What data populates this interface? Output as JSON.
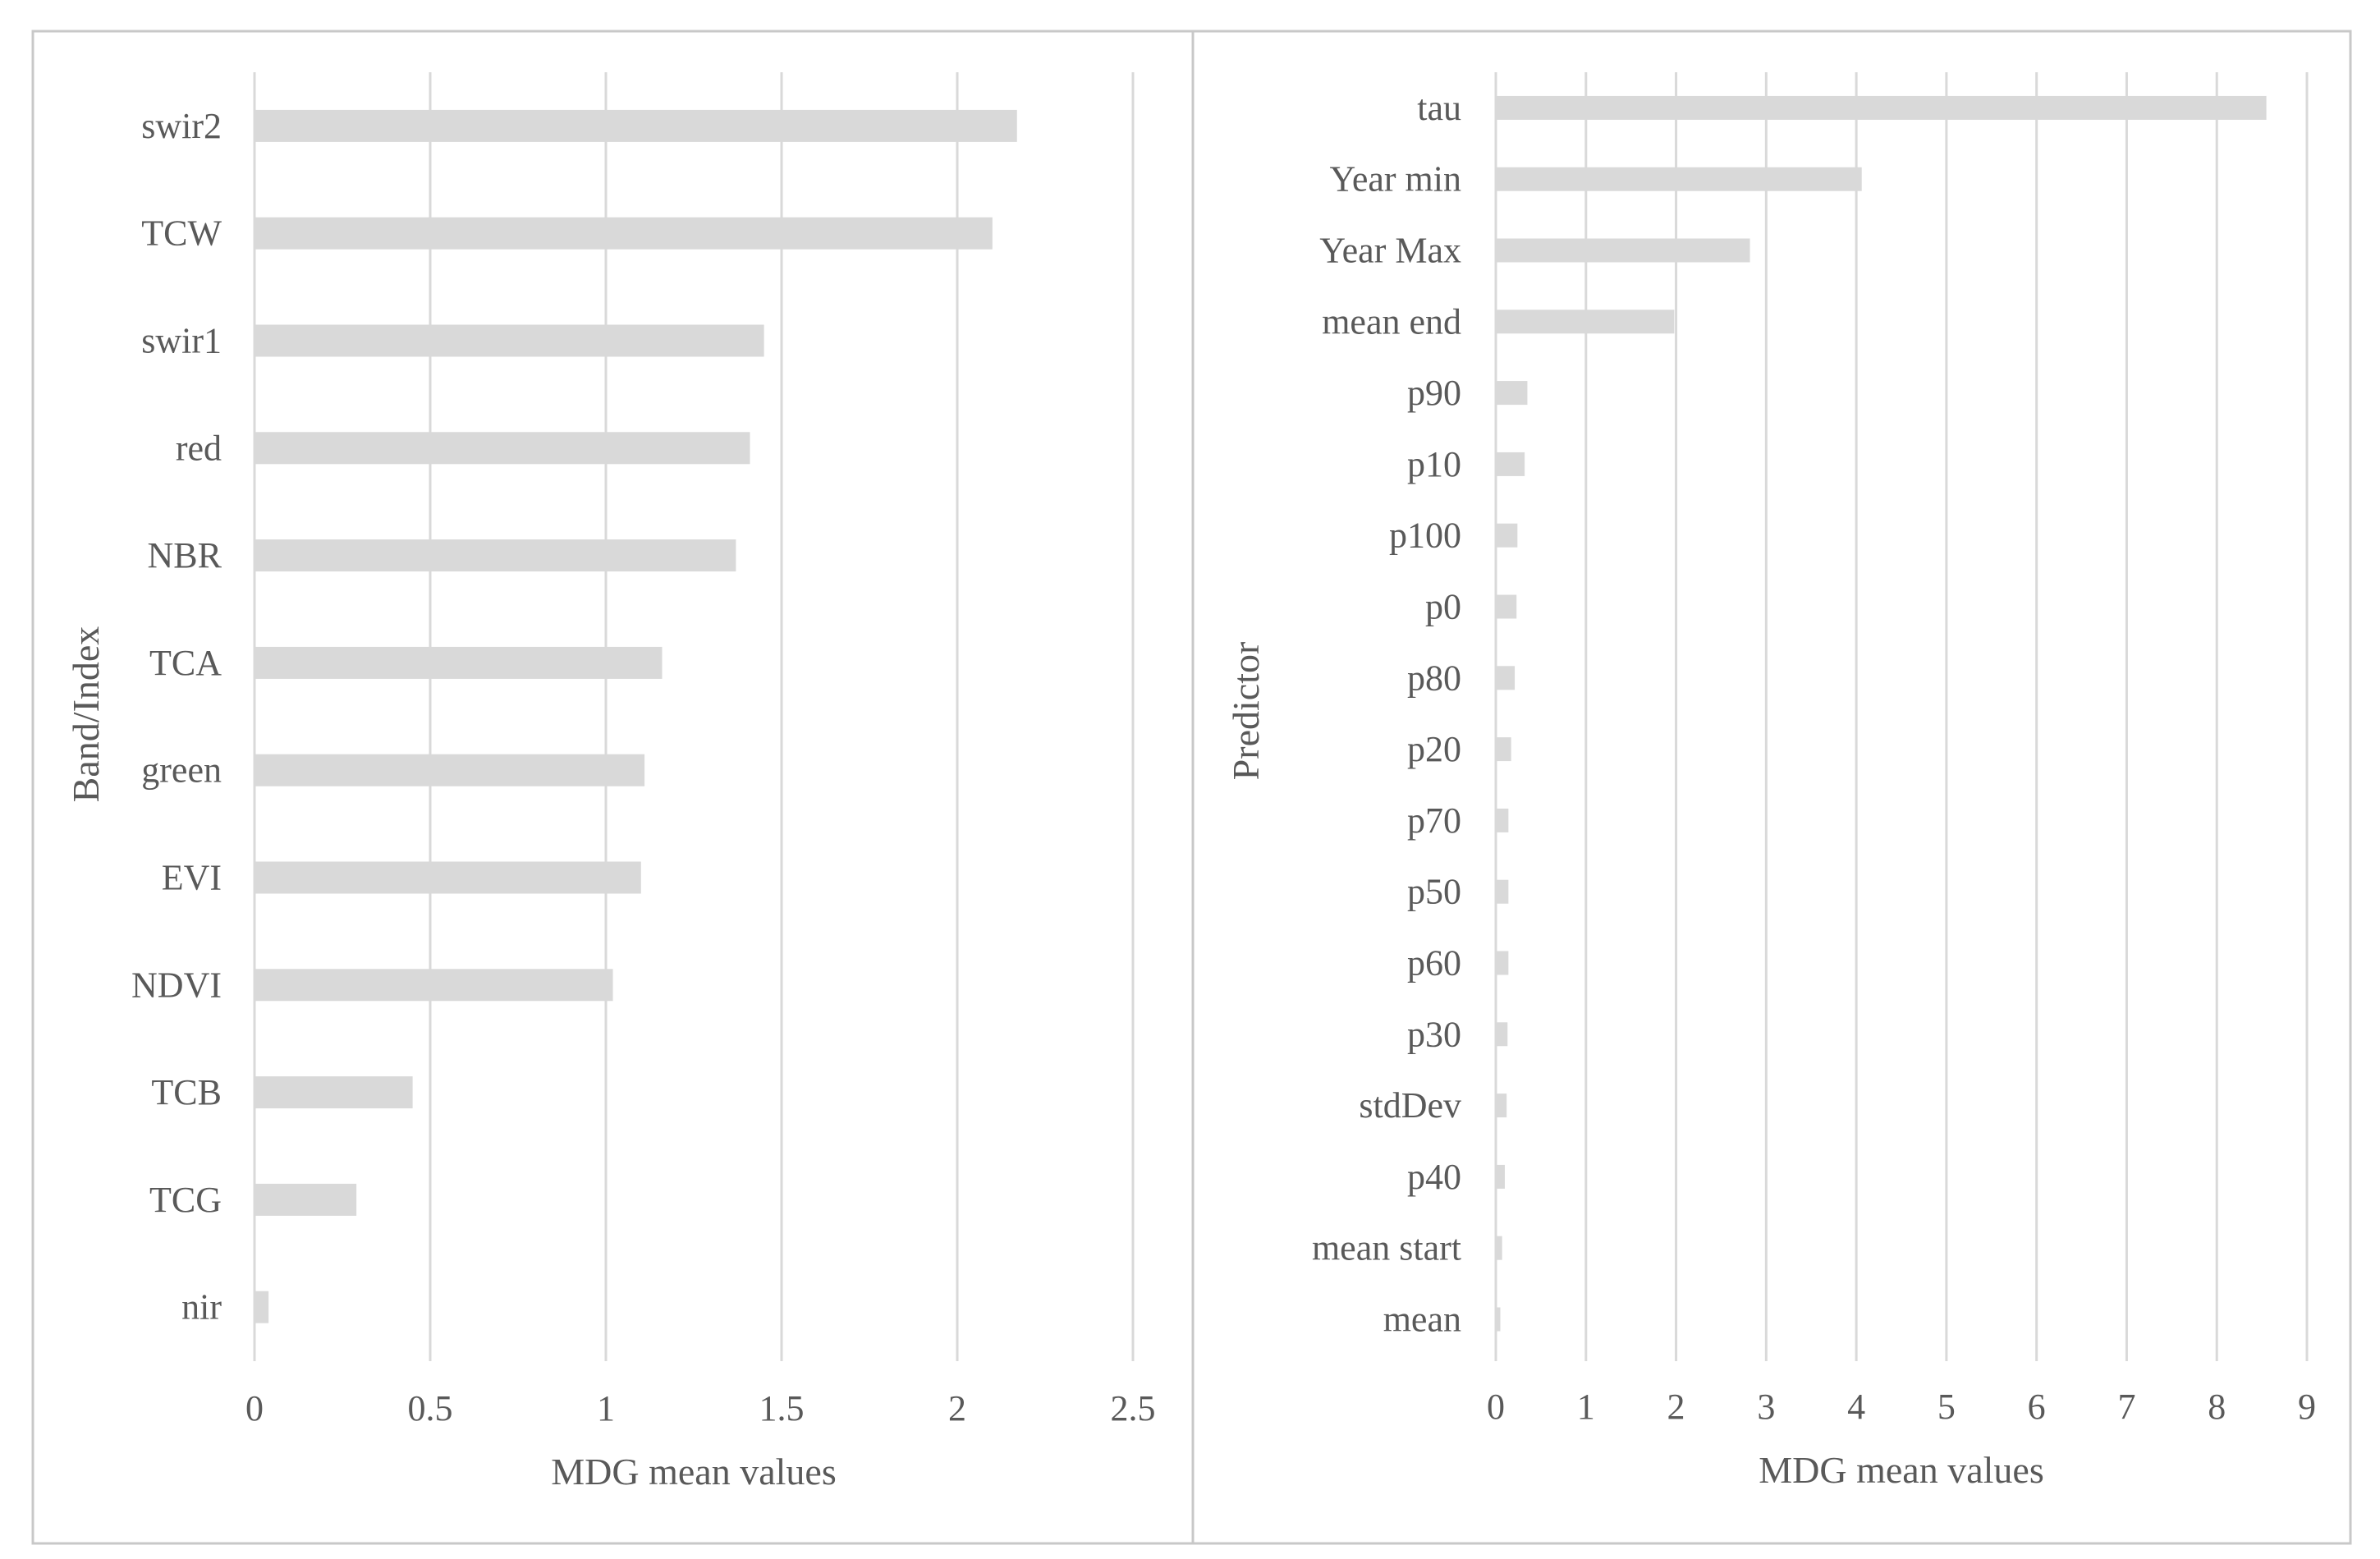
{
  "colors": {
    "bar": "#d9d9d9",
    "grid": "#d9d9d9",
    "text": "#595959",
    "panel_border": "#c8c8c8"
  },
  "chart_data": [
    {
      "type": "bar",
      "orientation": "horizontal",
      "title": "",
      "xlabel": "MDG mean values",
      "ylabel": "Band/Index",
      "xlim": [
        0,
        2.5
      ],
      "xticks": [
        0,
        0.5,
        1,
        1.5,
        2,
        2.5
      ],
      "xtick_labels": [
        "0",
        "0.5",
        "1",
        "1.5",
        "2",
        "2.5"
      ],
      "grid": "vertical",
      "legend": "none",
      "categories": [
        "swir2",
        "TCW",
        "swir1",
        "red",
        "NBR",
        "TCA",
        "green",
        "EVI",
        "NDVI",
        "TCB",
        "TCG",
        "nir"
      ],
      "values": [
        2.17,
        2.1,
        1.45,
        1.41,
        1.37,
        1.16,
        1.11,
        1.1,
        1.02,
        0.45,
        0.29,
        0.04
      ]
    },
    {
      "type": "bar",
      "orientation": "horizontal",
      "title": "",
      "xlabel": "MDG mean values",
      "ylabel": "Predictor",
      "xlim": [
        0,
        9
      ],
      "xticks": [
        0,
        1,
        2,
        3,
        4,
        5,
        6,
        7,
        8,
        9
      ],
      "xtick_labels": [
        "0",
        "1",
        "2",
        "3",
        "4",
        "5",
        "6",
        "7",
        "8",
        "9"
      ],
      "grid": "vertical",
      "legend": "none",
      "categories": [
        "tau",
        "Year min",
        "Year Max",
        "mean end",
        "p90",
        "p10",
        "p100",
        "p0",
        "p80",
        "p20",
        "p70",
        "p50",
        "p60",
        "p30",
        "stdDev",
        "p40",
        "mean start",
        "mean"
      ],
      "values": [
        8.55,
        4.06,
        2.82,
        1.98,
        0.35,
        0.32,
        0.24,
        0.23,
        0.21,
        0.17,
        0.14,
        0.14,
        0.14,
        0.13,
        0.12,
        0.1,
        0.07,
        0.05
      ]
    }
  ]
}
